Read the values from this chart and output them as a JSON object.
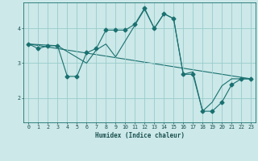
{
  "xlabel": "Humidex (Indice chaleur)",
  "bg_color": "#cce8e8",
  "grid_color": "#99cccc",
  "line_color": "#1a7070",
  "xlim": [
    -0.5,
    23.5
  ],
  "ylim": [
    1.3,
    4.75
  ],
  "yticks": [
    2,
    3,
    4
  ],
  "xticks": [
    0,
    1,
    2,
    3,
    4,
    5,
    6,
    7,
    8,
    9,
    10,
    11,
    12,
    13,
    14,
    15,
    16,
    17,
    18,
    19,
    20,
    21,
    22,
    23
  ],
  "curve1_x": [
    0,
    1,
    2,
    3,
    4,
    5,
    6,
    7,
    8,
    9,
    10,
    11,
    12,
    13,
    14,
    15,
    16,
    17,
    18,
    19,
    20,
    21,
    22,
    23
  ],
  "curve1_y": [
    3.55,
    3.42,
    3.5,
    3.5,
    2.62,
    2.62,
    3.3,
    3.42,
    3.95,
    3.95,
    3.95,
    4.12,
    4.58,
    4.0,
    4.42,
    4.28,
    2.68,
    2.68,
    1.62,
    1.62,
    1.88,
    2.38,
    2.55,
    2.55
  ],
  "curve2_x": [
    0,
    3,
    6,
    7,
    8,
    9,
    12,
    13,
    14,
    15,
    16,
    17,
    18,
    19,
    20,
    21,
    22,
    23
  ],
  "curve2_y": [
    3.55,
    3.5,
    3.0,
    3.38,
    3.55,
    3.18,
    4.55,
    4.0,
    4.42,
    4.28,
    2.68,
    2.75,
    1.62,
    1.88,
    2.35,
    2.55,
    2.55,
    2.55
  ],
  "curve3_x": [
    0,
    23
  ],
  "curve3_y": [
    3.55,
    2.55
  ],
  "markersize": 2.5
}
